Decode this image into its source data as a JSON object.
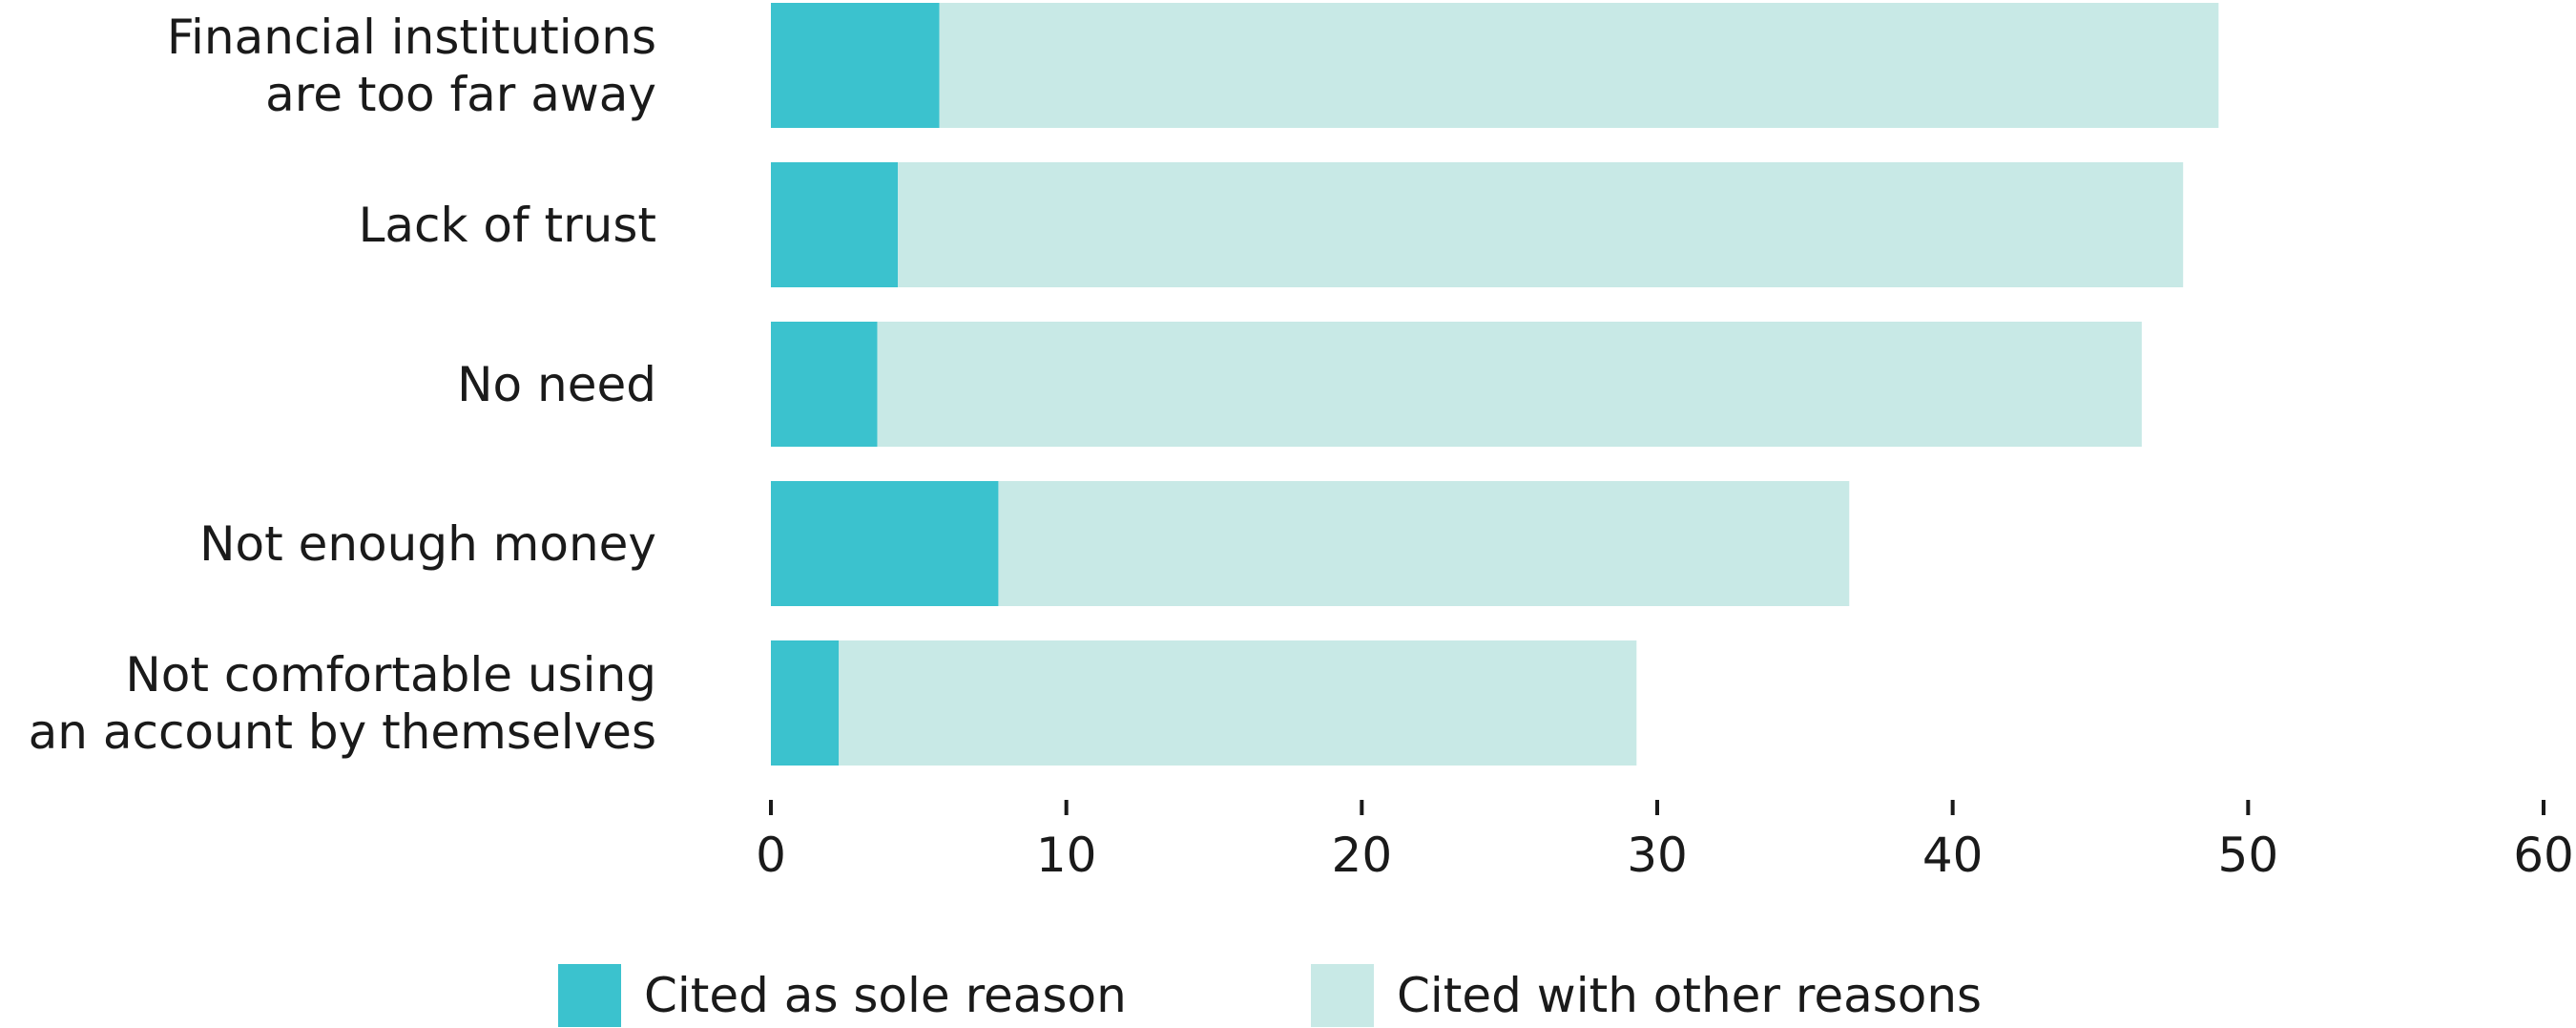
{
  "chart_data": {
    "type": "stacked-barh",
    "categories": [
      "Financial institutions\nare too far away",
      "Lack of trust",
      "No need",
      "Not enough money",
      "Not comfortable using\nan account by themselves"
    ],
    "series": [
      {
        "name": "Cited as sole reason",
        "color": "#3bc2ce",
        "values": [
          5.7,
          4.3,
          3.6,
          7.7,
          2.3
        ]
      },
      {
        "name": "Cited with other reasons",
        "color": "#c8e9e6",
        "values": [
          43.3,
          43.5,
          42.8,
          28.8,
          27.0
        ]
      }
    ],
    "xlim": [
      0,
      60
    ],
    "xticks": [
      0,
      10,
      20,
      30,
      40,
      50,
      60
    ]
  }
}
